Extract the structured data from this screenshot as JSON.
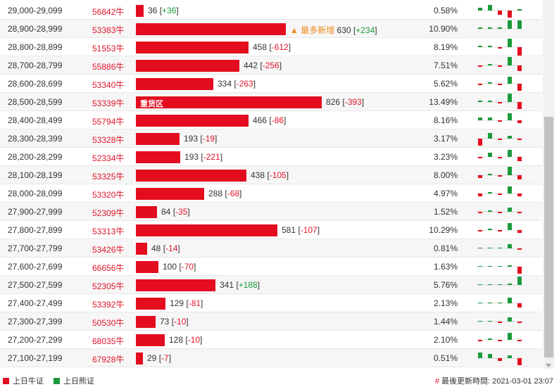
{
  "colors": {
    "bull": "#e30d1f",
    "bear": "#1a9a3c",
    "hot": "#f08a1c"
  },
  "rows": [
    {
      "range": "29,000-29,099",
      "code": "56842牛",
      "pct_bar": 0.58,
      "value": "36",
      "change": "+36",
      "pct": "0.58%",
      "tag": "",
      "hot": "",
      "spark": [
        2,
        4,
        -3,
        -5,
        1
      ]
    },
    {
      "range": "28,900-28,999",
      "code": "53383牛",
      "pct_bar": 10.9,
      "value": "630",
      "change": "+234",
      "pct": "10.90%",
      "tag": "",
      "hot": "▲ 最多新增",
      "spark": [
        1,
        1,
        1,
        6,
        6
      ]
    },
    {
      "range": "28,800-28,899",
      "code": "51553牛",
      "pct_bar": 8.19,
      "value": "458",
      "change": "-612",
      "pct": "8.19%",
      "tag": "",
      "hot": "",
      "spark": [
        1,
        1,
        -1,
        6,
        -6
      ]
    },
    {
      "range": "28,700-28,799",
      "code": "55886牛",
      "pct_bar": 7.51,
      "value": "442",
      "change": "-256",
      "pct": "7.51%",
      "tag": "",
      "hot": "",
      "spark": [
        -1,
        1,
        -1,
        6,
        -4
      ]
    },
    {
      "range": "28,600-28,699",
      "code": "53340牛",
      "pct_bar": 5.62,
      "value": "334",
      "change": "-263",
      "pct": "5.62%",
      "tag": "",
      "hot": "",
      "spark": [
        -1,
        1,
        -1,
        5,
        -5
      ]
    },
    {
      "range": "28,500-28,599",
      "code": "53339牛",
      "pct_bar": 13.49,
      "value": "826",
      "change": "-393",
      "pct": "13.49%",
      "tag": "重货区",
      "hot": "",
      "spark": [
        1,
        1,
        -1,
        6,
        -5
      ]
    },
    {
      "range": "28,400-28,499",
      "code": "55794牛",
      "pct_bar": 8.16,
      "value": "466",
      "change": "-86",
      "pct": "8.16%",
      "tag": "",
      "hot": "",
      "spark": [
        2,
        2,
        -1,
        5,
        -2
      ]
    },
    {
      "range": "28,300-28,399",
      "code": "53328牛",
      "pct_bar": 3.17,
      "value": "193",
      "change": "-19",
      "pct": "3.17%",
      "tag": "",
      "hot": "",
      "spark": [
        -5,
        4,
        -1,
        2,
        -1
      ]
    },
    {
      "range": "28,200-28,299",
      "code": "52334牛",
      "pct_bar": 3.23,
      "value": "193",
      "change": "-221",
      "pct": "3.23%",
      "tag": "",
      "hot": "",
      "spark": [
        -1,
        3,
        -1,
        5,
        -3
      ]
    },
    {
      "range": "28,100-28,199",
      "code": "53325牛",
      "pct_bar": 8.0,
      "value": "438",
      "change": "-105",
      "pct": "8.00%",
      "tag": "",
      "hot": "",
      "spark": [
        -2,
        1,
        -1,
        6,
        -3
      ]
    },
    {
      "range": "28,000-28,099",
      "code": "53320牛",
      "pct_bar": 4.97,
      "value": "288",
      "change": "-68",
      "pct": "4.97%",
      "tag": "",
      "hot": "",
      "spark": [
        -2,
        1,
        -1,
        5,
        -2
      ]
    },
    {
      "range": "27,900-27,999",
      "code": "52309牛",
      "pct_bar": 1.52,
      "value": "84",
      "change": "-35",
      "pct": "1.52%",
      "tag": "",
      "hot": "",
      "spark": [
        -1,
        1,
        -1,
        3,
        -1
      ]
    },
    {
      "range": "27,800-27,899",
      "code": "53313牛",
      "pct_bar": 10.29,
      "value": "581",
      "change": "-107",
      "pct": "10.29%",
      "tag": "",
      "hot": "",
      "spark": [
        -1,
        1,
        -1,
        5,
        -2
      ]
    },
    {
      "range": "27,700-27,799",
      "code": "53426牛",
      "pct_bar": 0.81,
      "value": "48",
      "change": "-14",
      "pct": "0.81%",
      "tag": "",
      "hot": "",
      "spark": [
        0,
        0,
        0,
        3,
        -1
      ]
    },
    {
      "range": "27,600-27,699",
      "code": "66656牛",
      "pct_bar": 1.63,
      "value": "100",
      "change": "-70",
      "pct": "1.63%",
      "tag": "",
      "hot": "",
      "spark": [
        0,
        0,
        0,
        1,
        -5
      ]
    },
    {
      "range": "27,500-27,599",
      "code": "52305牛",
      "pct_bar": 5.76,
      "value": "341",
      "change": "+188",
      "pct": "5.76%",
      "tag": "",
      "hot": "",
      "spark": [
        0,
        0,
        0,
        1,
        6
      ]
    },
    {
      "range": "27,400-27,499",
      "code": "53392牛",
      "pct_bar": 2.13,
      "value": "129",
      "change": "-81",
      "pct": "2.13%",
      "tag": "",
      "hot": "",
      "spark": [
        0,
        0,
        0,
        4,
        -3
      ]
    },
    {
      "range": "27,300-27,399",
      "code": "50530牛",
      "pct_bar": 1.44,
      "value": "73",
      "change": "-10",
      "pct": "1.44%",
      "tag": "",
      "hot": "",
      "spark": [
        0,
        0,
        -1,
        3,
        -1
      ]
    },
    {
      "range": "27,200-27,299",
      "code": "68035牛",
      "pct_bar": 2.1,
      "value": "128",
      "change": "-10",
      "pct": "2.10%",
      "tag": "",
      "hot": "",
      "spark": [
        -1,
        1,
        -1,
        5,
        -1
      ]
    },
    {
      "range": "27,100-27,199",
      "code": "67928牛",
      "pct_bar": 0.51,
      "value": "29",
      "change": "-7",
      "pct": "0.51%",
      "tag": "",
      "hot": "",
      "spark": [
        4,
        3,
        -2,
        2,
        -5
      ]
    }
  ],
  "legend": {
    "bull_label": "上日牛证",
    "bear_label": "上日熊证"
  },
  "footer": {
    "hash": "#",
    "updated_label": "最後更新時間: 2021-03-01 23:07"
  }
}
